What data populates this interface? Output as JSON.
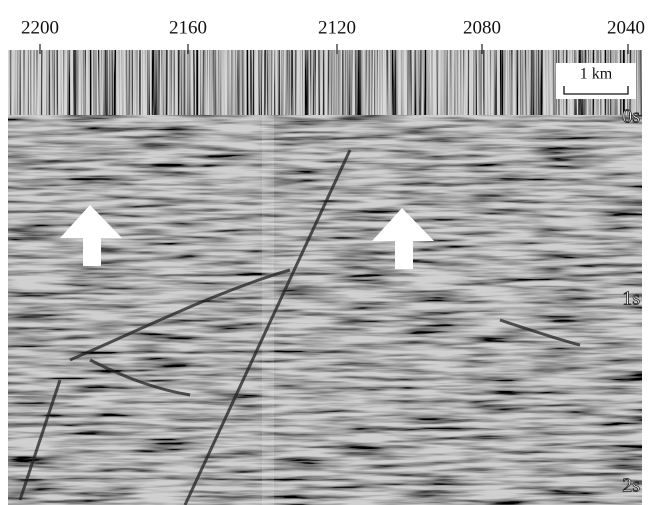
{
  "top_axis": {
    "labels": [
      "2200",
      "2160",
      "2120",
      "2080",
      "2040"
    ]
  },
  "scale_bar": {
    "label": "1 km"
  },
  "time_labels": [
    "0s",
    "1s",
    "2s"
  ]
}
